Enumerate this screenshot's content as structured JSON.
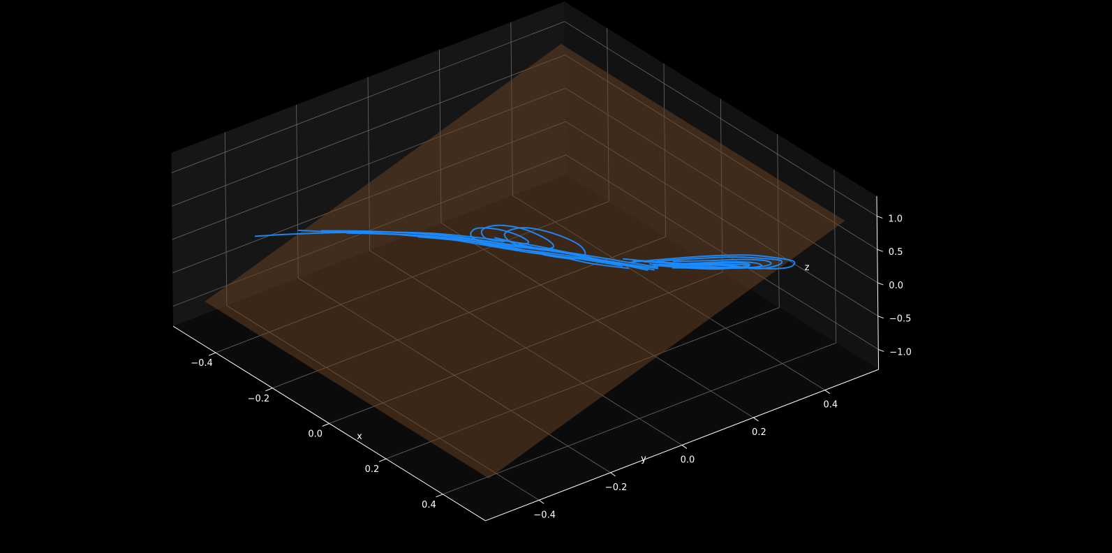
{
  "chart_data": {
    "type": "line3d",
    "title": "",
    "background": "#000000",
    "pane_color": "#111111",
    "grid": true,
    "axes": {
      "x": {
        "label": "x",
        "ticks": [
          -0.4,
          -0.2,
          0.0,
          0.2,
          0.4
        ],
        "tick_labels": [
          "−0.4",
          "−0.2",
          "0.0",
          "0.2",
          "0.4"
        ],
        "range": [
          -0.55,
          0.55
        ]
      },
      "y": {
        "label": "y",
        "ticks": [
          -0.4,
          -0.2,
          0.0,
          0.2,
          0.4
        ],
        "tick_labels": [
          "−0.4",
          "−0.2",
          "0.0",
          "0.2",
          "0.4"
        ],
        "range": [
          -0.55,
          0.55
        ]
      },
      "z": {
        "label": "z",
        "ticks": [
          -1.0,
          -0.5,
          0.0,
          0.5,
          1.0
        ],
        "tick_labels": [
          "−1.0",
          "−0.5",
          "0.0",
          "0.5",
          "1.0"
        ],
        "range": [
          -1.3,
          1.3
        ]
      }
    },
    "plane": {
      "color": "#6b4426",
      "opacity": 0.5,
      "corners": [
        {
          "x": -0.5,
          "y": -0.5,
          "z": -0.9
        },
        {
          "x": 0.5,
          "y": -0.5,
          "z": -0.9
        },
        {
          "x": 0.5,
          "y": 0.5,
          "z": 0.9
        },
        {
          "x": -0.5,
          "y": 0.5,
          "z": 0.9
        }
      ]
    },
    "series": [
      {
        "color": "#1a8cff",
        "linewidth": 2,
        "segments": [
          [
            [
              -0.37,
              -0.46,
              0.34
            ],
            [
              -0.33,
              -0.41,
              0.37
            ],
            [
              -0.27,
              -0.33,
              0.39
            ],
            [
              -0.2,
              -0.24,
              0.4
            ],
            [
              -0.13,
              -0.15,
              0.38
            ],
            [
              -0.06,
              -0.07,
              0.33
            ],
            [
              0.0,
              0.0,
              0.26
            ],
            [
              0.06,
              0.06,
              0.18
            ],
            [
              0.11,
              0.11,
              0.1
            ],
            [
              0.15,
              0.16,
              0.02
            ],
            [
              0.19,
              0.21,
              -0.06
            ]
          ],
          [
            [
              -0.33,
              -0.37,
              0.35
            ],
            [
              -0.27,
              -0.31,
              0.36
            ],
            [
              -0.2,
              -0.22,
              0.36
            ],
            [
              -0.12,
              -0.13,
              0.33
            ],
            [
              -0.04,
              -0.05,
              0.27
            ],
            [
              0.03,
              0.03,
              0.2
            ],
            [
              0.09,
              0.1,
              0.12
            ],
            [
              0.14,
              0.16,
              0.04
            ],
            [
              0.19,
              0.22,
              -0.04
            ]
          ],
          [
            [
              -0.3,
              -0.33,
              0.34
            ],
            [
              -0.24,
              -0.26,
              0.35
            ],
            [
              -0.17,
              -0.18,
              0.34
            ],
            [
              -0.1,
              -0.1,
              0.3
            ],
            [
              -0.03,
              -0.03,
              0.24
            ],
            [
              0.03,
              0.04,
              0.17
            ],
            [
              0.09,
              0.1,
              0.09
            ],
            [
              0.14,
              0.16,
              0.01
            ],
            [
              0.19,
              0.22,
              -0.06
            ]
          ],
          [
            [
              -0.26,
              -0.29,
              0.33
            ],
            [
              -0.2,
              -0.22,
              0.33
            ],
            [
              -0.13,
              -0.14,
              0.31
            ],
            [
              -0.06,
              -0.07,
              0.26
            ],
            [
              0.0,
              0.0,
              0.2
            ],
            [
              0.06,
              0.07,
              0.13
            ],
            [
              0.12,
              0.13,
              0.05
            ],
            [
              0.17,
              0.19,
              -0.03
            ]
          ],
          [
            [
              -0.23,
              -0.25,
              0.32
            ],
            [
              -0.17,
              -0.18,
              0.31
            ],
            [
              -0.1,
              -0.1,
              0.27
            ],
            [
              -0.03,
              -0.04,
              0.21
            ],
            [
              0.03,
              0.03,
              0.15
            ],
            [
              0.08,
              0.09,
              0.08
            ],
            [
              0.13,
              0.15,
              0.0
            ],
            [
              0.18,
              0.2,
              -0.07
            ]
          ],
          [
            [
              -0.2,
              -0.21,
              0.31
            ],
            [
              -0.14,
              -0.15,
              0.29
            ],
            [
              -0.08,
              -0.08,
              0.25
            ],
            [
              -0.02,
              -0.02,
              0.19
            ],
            [
              0.04,
              0.04,
              0.12
            ],
            [
              0.09,
              0.1,
              0.05
            ],
            [
              0.14,
              0.16,
              -0.03
            ]
          ],
          [
            [
              -0.16,
              -0.17,
              0.29
            ],
            [
              -0.11,
              -0.11,
              0.25
            ],
            [
              -0.06,
              -0.06,
              0.2
            ],
            [
              0.0,
              0.0,
              0.14
            ],
            [
              0.05,
              0.06,
              0.07
            ],
            [
              0.1,
              0.11,
              0.0
            ],
            [
              0.15,
              0.17,
              -0.06
            ]
          ],
          [
            [
              -0.08,
              -0.02,
              0.18
            ],
            [
              -0.04,
              0.02,
              0.12
            ],
            [
              -0.05,
              0.05,
              0.05
            ],
            [
              -0.1,
              0.06,
              0.0
            ],
            [
              -0.15,
              0.04,
              0.0
            ],
            [
              -0.17,
              0.0,
              0.04
            ],
            [
              -0.14,
              -0.04,
              0.1
            ],
            [
              -0.09,
              -0.05,
              0.15
            ],
            [
              -0.04,
              -0.03,
              0.18
            ]
          ],
          [
            [
              -0.02,
              0.0,
              0.2
            ],
            [
              0.01,
              0.04,
              0.13
            ],
            [
              0.0,
              0.08,
              0.05
            ],
            [
              -0.05,
              0.1,
              -0.01
            ],
            [
              -0.12,
              0.09,
              -0.02
            ],
            [
              -0.16,
              0.05,
              0.01
            ],
            [
              -0.15,
              0.0,
              0.07
            ],
            [
              -0.1,
              -0.03,
              0.14
            ],
            [
              -0.05,
              -0.02,
              0.2
            ]
          ],
          [
            [
              0.04,
              0.02,
              0.16
            ],
            [
              0.07,
              0.07,
              0.08
            ],
            [
              0.06,
              0.12,
              0.0
            ],
            [
              0.0,
              0.15,
              -0.06
            ],
            [
              -0.08,
              0.14,
              -0.08
            ],
            [
              -0.13,
              0.1,
              -0.05
            ],
            [
              -0.12,
              0.04,
              0.02
            ],
            [
              -0.06,
              0.01,
              0.1
            ],
            [
              0.0,
              0.02,
              0.15
            ]
          ],
          [
            [
              0.12,
              0.18,
              -0.02
            ],
            [
              0.16,
              0.24,
              -0.08
            ],
            [
              0.2,
              0.3,
              -0.13
            ],
            [
              0.24,
              0.36,
              -0.17
            ],
            [
              0.28,
              0.41,
              -0.2
            ],
            [
              0.31,
              0.45,
              -0.22
            ],
            [
              0.33,
              0.48,
              -0.2
            ],
            [
              0.33,
              0.49,
              -0.14
            ],
            [
              0.31,
              0.46,
              -0.08
            ],
            [
              0.27,
              0.41,
              -0.04
            ],
            [
              0.22,
              0.34,
              -0.04
            ],
            [
              0.17,
              0.27,
              -0.07
            ],
            [
              0.12,
              0.2,
              -0.11
            ]
          ],
          [
            [
              0.13,
              0.2,
              -0.06
            ],
            [
              0.17,
              0.26,
              -0.11
            ],
            [
              0.21,
              0.32,
              -0.15
            ],
            [
              0.25,
              0.38,
              -0.19
            ],
            [
              0.29,
              0.42,
              -0.21
            ],
            [
              0.31,
              0.46,
              -0.19
            ],
            [
              0.31,
              0.47,
              -0.14
            ],
            [
              0.29,
              0.44,
              -0.1
            ],
            [
              0.25,
              0.39,
              -0.08
            ],
            [
              0.2,
              0.32,
              -0.09
            ],
            [
              0.15,
              0.25,
              -0.12
            ]
          ],
          [
            [
              0.14,
              0.22,
              -0.09
            ],
            [
              0.18,
              0.28,
              -0.14
            ],
            [
              0.22,
              0.33,
              -0.17
            ],
            [
              0.26,
              0.38,
              -0.2
            ],
            [
              0.29,
              0.43,
              -0.2
            ],
            [
              0.3,
              0.45,
              -0.17
            ],
            [
              0.29,
              0.44,
              -0.13
            ],
            [
              0.26,
              0.4,
              -0.11
            ],
            [
              0.22,
              0.34,
              -0.11
            ],
            [
              0.17,
              0.28,
              -0.13
            ]
          ],
          [
            [
              0.15,
              0.23,
              -0.12
            ],
            [
              0.19,
              0.29,
              -0.16
            ],
            [
              0.23,
              0.34,
              -0.19
            ],
            [
              0.27,
              0.4,
              -0.21
            ],
            [
              0.29,
              0.43,
              -0.19
            ],
            [
              0.28,
              0.42,
              -0.15
            ],
            [
              0.25,
              0.38,
              -0.13
            ],
            [
              0.21,
              0.32,
              -0.13
            ],
            [
              0.17,
              0.27,
              -0.15
            ]
          ],
          [
            [
              0.16,
              0.25,
              -0.14
            ],
            [
              0.2,
              0.3,
              -0.18
            ],
            [
              0.24,
              0.36,
              -0.2
            ],
            [
              0.27,
              0.4,
              -0.2
            ],
            [
              0.27,
              0.41,
              -0.17
            ],
            [
              0.24,
              0.37,
              -0.15
            ],
            [
              0.2,
              0.31,
              -0.15
            ]
          ],
          [
            [
              0.15,
              0.24,
              -0.16
            ],
            [
              0.19,
              0.29,
              -0.19
            ],
            [
              0.23,
              0.34,
              -0.21
            ],
            [
              0.26,
              0.39,
              -0.21
            ],
            [
              0.27,
              0.41,
              -0.19
            ],
            [
              0.25,
              0.38,
              -0.17
            ],
            [
              0.21,
              0.33,
              -0.16
            ]
          ],
          [
            [
              0.18,
              0.27,
              -0.18
            ],
            [
              0.22,
              0.33,
              -0.2
            ],
            [
              0.25,
              0.37,
              -0.2
            ],
            [
              0.25,
              0.38,
              -0.18
            ],
            [
              0.22,
              0.34,
              -0.17
            ]
          ]
        ]
      }
    ]
  }
}
